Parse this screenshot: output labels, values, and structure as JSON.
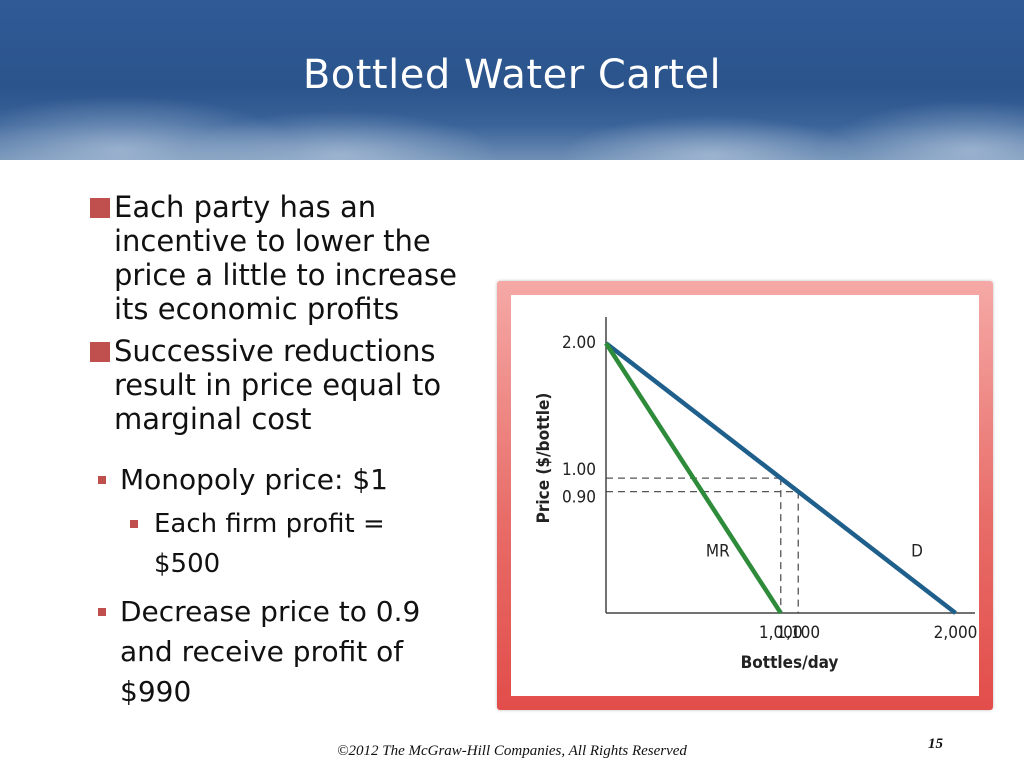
{
  "slide": {
    "title": "Bottled Water Cartel",
    "footer": "©2012 The McGraw-Hill Companies, All Rights Reserved",
    "page_number": "15"
  },
  "colors": {
    "header_blue": "#2f5a96",
    "bullet_red": "#c0504d",
    "frame_red": "#e24d4a",
    "demand_line": "#1f5f8b",
    "mr_line": "#2e8b3a"
  },
  "bullets": [
    {
      "level": 1,
      "text": "Each party has an incentive to lower the price a little to increase its economic profits"
    },
    {
      "level": 1,
      "text": "Successive reductions result in price equal to marginal cost"
    },
    {
      "level": 2,
      "text": "Monopoly price: $1"
    },
    {
      "level": 3,
      "text": "Each firm profit = $500"
    },
    {
      "level": 2,
      "text": "Decrease price to 0.9 and receive profit of $990"
    }
  ],
  "chart_data": {
    "type": "line",
    "xlabel": "Bottles/day",
    "ylabel": "Price ($/bottle)",
    "xlim": [
      0,
      2100
    ],
    "ylim": [
      0,
      2.15
    ],
    "x_ticks": [
      {
        "value": 1000,
        "label": "1,000"
      },
      {
        "value": 1100,
        "label": "1,100"
      },
      {
        "value": 2000,
        "label": "2,000"
      }
    ],
    "y_ticks": [
      {
        "value": 2.0,
        "label": "2.00"
      },
      {
        "value": 1.0,
        "label": "1.00"
      },
      {
        "value": 0.9,
        "label": "0.90"
      }
    ],
    "series": [
      {
        "name": "D",
        "x": [
          0,
          2000
        ],
        "y": [
          2.0,
          0
        ],
        "color": "#1f5f8b",
        "label_at": [
          1780,
          0.42
        ]
      },
      {
        "name": "MR",
        "x": [
          0,
          1000
        ],
        "y": [
          2.0,
          0
        ],
        "color": "#2e8b3a",
        "label_at": [
          640,
          0.42
        ]
      }
    ],
    "reference_lines": [
      {
        "from": [
          0,
          1.0
        ],
        "to": [
          1000,
          1.0
        ]
      },
      {
        "from": [
          1000,
          1.0
        ],
        "to": [
          1000,
          0
        ]
      },
      {
        "from": [
          0,
          0.9
        ],
        "to": [
          1100,
          0.9
        ]
      },
      {
        "from": [
          1100,
          0.9
        ],
        "to": [
          1100,
          0
        ]
      }
    ],
    "grid": false,
    "legend": "none"
  }
}
